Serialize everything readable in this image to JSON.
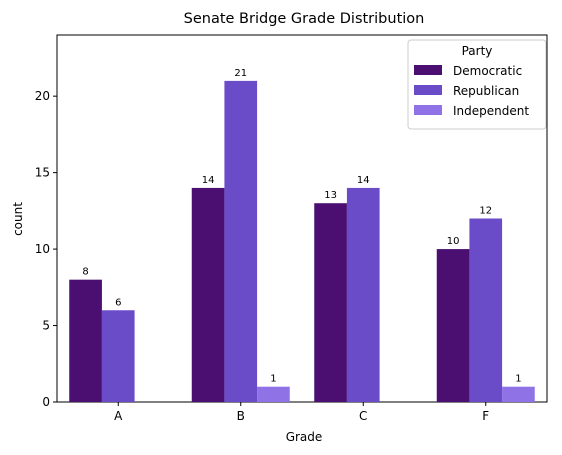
{
  "chart_data": {
    "type": "bar",
    "title": "Senate Bridge Grade Distribution",
    "xlabel": "Grade",
    "ylabel": "count",
    "categories": [
      "A",
      "B",
      "C",
      "F"
    ],
    "series": [
      {
        "name": "Democratic",
        "color": "#4b0f72",
        "values": [
          8,
          14,
          13,
          10
        ]
      },
      {
        "name": "Republican",
        "color": "#6a4cc8",
        "values": [
          6,
          21,
          14,
          12
        ]
      },
      {
        "name": "Independent",
        "color": "#8f73e6",
        "values": [
          0,
          1,
          0,
          1
        ]
      }
    ],
    "ylim": [
      0,
      24
    ],
    "yticks": [
      0,
      5,
      10,
      15,
      20
    ],
    "grid": false,
    "legend": {
      "title": "Party",
      "placement": "top-right"
    }
  }
}
